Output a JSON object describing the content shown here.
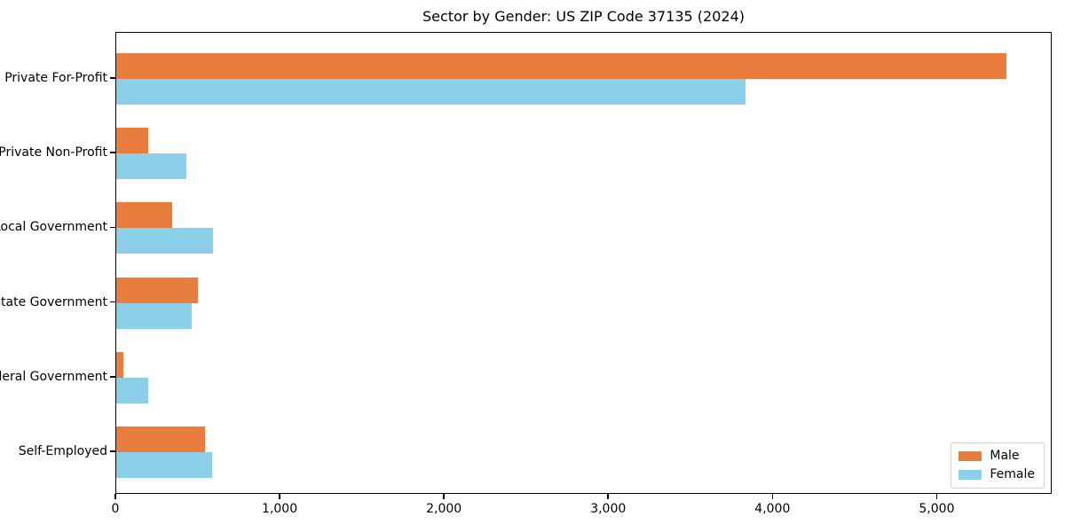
{
  "chart_data": {
    "type": "bar",
    "orientation": "horizontal",
    "title": "Sector by Gender: US ZIP Code 37135 (2024)",
    "categories": [
      "Private For-Profit",
      "Private Non-Profit",
      "Local Government",
      "State Government",
      "Federal Government",
      "Self-Employed"
    ],
    "series": [
      {
        "name": "Male",
        "color": "#e87d3e",
        "values": [
          5430,
          195,
          340,
          500,
          45,
          540
        ]
      },
      {
        "name": "Female",
        "color": "#8ccfe8",
        "values": [
          3840,
          425,
          590,
          460,
          195,
          585
        ]
      }
    ],
    "xlabel": "",
    "ylabel": "",
    "xlim": [
      0,
      5700
    ],
    "x_ticks": [
      0,
      1000,
      2000,
      3000,
      4000,
      5000
    ],
    "x_tick_labels": [
      "0",
      "1,000",
      "2,000",
      "3,000",
      "4,000",
      "5,000"
    ],
    "grid": false,
    "legend": {
      "position": "lower right",
      "entries": [
        {
          "label": "Male",
          "color": "#e87d3e"
        },
        {
          "label": "Female",
          "color": "#8ccfe8"
        }
      ]
    }
  },
  "colors": {
    "male": "#e87d3e",
    "female": "#8ccfe8",
    "spine": "#000000",
    "background": "#ffffff",
    "legend_border": "#d0d0d0"
  }
}
